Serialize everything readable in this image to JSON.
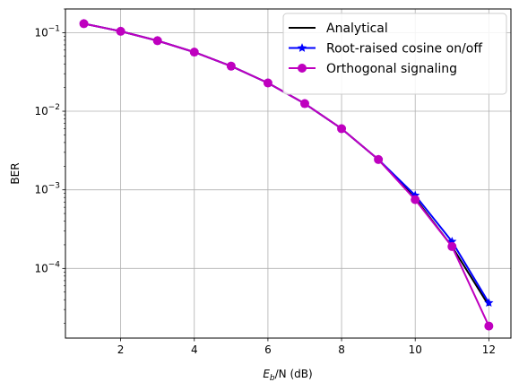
{
  "chart_data": {
    "type": "line",
    "xlabel": {
      "symbol": "E",
      "subscript": "b",
      "rest": "/N (dB)"
    },
    "ylabel": "BER",
    "xlim": [
      0.5,
      12.6
    ],
    "ylim": [
      1.3e-05,
      0.2
    ],
    "yscale": "log",
    "grid": true,
    "legend_position": "top-right",
    "x_ticks": [
      2,
      4,
      6,
      8,
      10,
      12
    ],
    "x_tick_labels": [
      "2",
      "4",
      "6",
      "8",
      "10",
      "12"
    ],
    "y_ticks": [
      {
        "value": 0.1,
        "base": "10",
        "exp": "−1"
      },
      {
        "value": 0.01,
        "base": "10",
        "exp": "−2"
      },
      {
        "value": 0.001,
        "base": "10",
        "exp": "−3"
      },
      {
        "value": 0.0001,
        "base": "10",
        "exp": "−4"
      }
    ],
    "x": [
      1,
      2,
      3,
      4,
      5,
      6,
      7,
      8,
      9,
      10,
      11,
      12
    ],
    "series": [
      {
        "name": "Analytical",
        "color": "#000000",
        "marker": "none",
        "values": [
          0.13,
          0.104,
          0.079,
          0.0565,
          0.0375,
          0.0229,
          0.0125,
          0.006,
          0.00243,
          0.00078,
          0.00019,
          3.36e-05
        ]
      },
      {
        "name": "Root-raised cosine on/off",
        "color": "#0000ff",
        "marker": "star",
        "values": [
          0.13,
          0.104,
          0.079,
          0.0565,
          0.0375,
          0.0229,
          0.0125,
          0.006,
          0.00243,
          0.00085,
          0.00022,
          3.65e-05
        ]
      },
      {
        "name": "Orthogonal signaling",
        "color": "#bf00bf",
        "marker": "circle",
        "values": [
          0.13,
          0.104,
          0.079,
          0.0565,
          0.0375,
          0.0229,
          0.0125,
          0.006,
          0.00243,
          0.00075,
          0.00019,
          1.85e-05
        ]
      }
    ]
  }
}
